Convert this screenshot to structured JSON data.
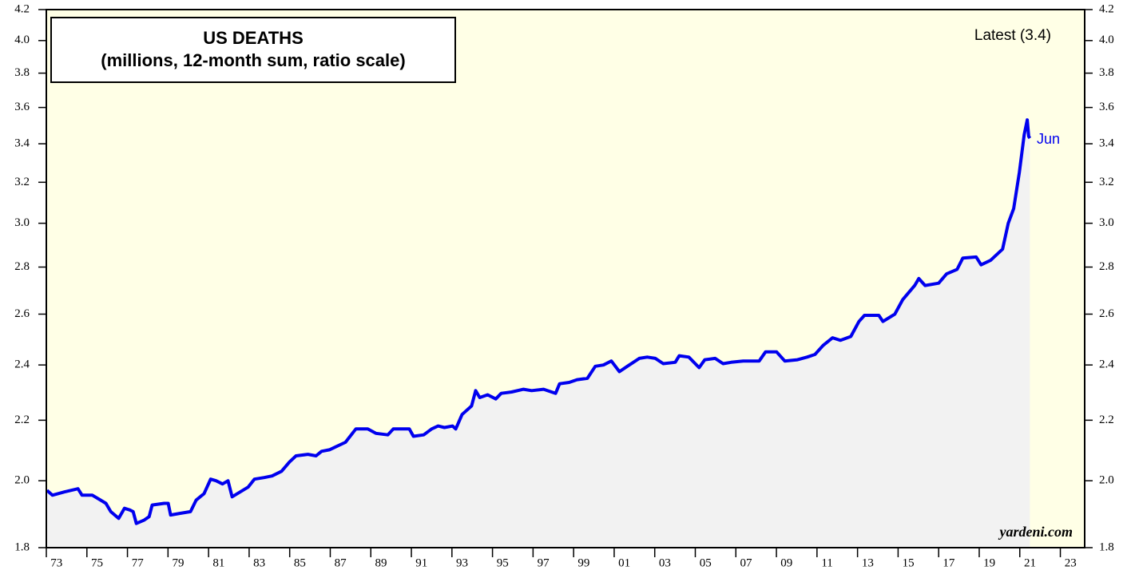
{
  "chart_data": {
    "type": "line",
    "title": "US DEATHS",
    "subtitle": "(millions, 12-month sum, ratio scale)",
    "annotations": [
      "Latest (3.4)",
      "Jun",
      "yardeni.com"
    ],
    "yscale": "log",
    "xlim": [
      1973,
      2024.2
    ],
    "xticks": [
      {
        "value": 1973,
        "label": "73"
      },
      {
        "value": 1975,
        "label": "75"
      },
      {
        "value": 1977,
        "label": "77"
      },
      {
        "value": 1979,
        "label": "79"
      },
      {
        "value": 1981,
        "label": "81"
      },
      {
        "value": 1983,
        "label": "83"
      },
      {
        "value": 1985,
        "label": "85"
      },
      {
        "value": 1987,
        "label": "87"
      },
      {
        "value": 1989,
        "label": "89"
      },
      {
        "value": 1991,
        "label": "91"
      },
      {
        "value": 1993,
        "label": "93"
      },
      {
        "value": 1995,
        "label": "95"
      },
      {
        "value": 1997,
        "label": "97"
      },
      {
        "value": 1999,
        "label": "99"
      },
      {
        "value": 2001,
        "label": "01"
      },
      {
        "value": 2003,
        "label": "03"
      },
      {
        "value": 2005,
        "label": "05"
      },
      {
        "value": 2007,
        "label": "07"
      },
      {
        "value": 2009,
        "label": "09"
      },
      {
        "value": 2011,
        "label": "11"
      },
      {
        "value": 2013,
        "label": "13"
      },
      {
        "value": 2015,
        "label": "15"
      },
      {
        "value": 2017,
        "label": "17"
      },
      {
        "value": 2019,
        "label": "19"
      },
      {
        "value": 2021,
        "label": "21"
      },
      {
        "value": 2023,
        "label": "23"
      }
    ],
    "ylim": [
      1.8,
      4.2
    ],
    "yticks": [
      1.8,
      {
        "value": 2,
        "label": "2.0"
      },
      2.2,
      2.4,
      2.6,
      2.8,
      {
        "value": 3,
        "label": "3.0"
      },
      3.2,
      3.4,
      3.6,
      3.8,
      {
        "value": 4,
        "label": "4.0"
      },
      4.2
    ],
    "x": [
      1973.03,
      1973.3,
      1973.89,
      1974.56,
      1974.76,
      1975.27,
      1975.67,
      1975.94,
      1976.18,
      1976.57,
      1976.85,
      1977.12,
      1977.28,
      1977.44,
      1977.83,
      1978.07,
      1978.22,
      1978.81,
      1979.01,
      1979.13,
      1979.6,
      1980.11,
      1980.39,
      1980.78,
      1981.1,
      1981.37,
      1981.69,
      1981.96,
      1982.16,
      1982.56,
      1982.95,
      1983.26,
      1983.74,
      1984.13,
      1984.6,
      1984.99,
      1985.31,
      1985.9,
      1986.3,
      1986.57,
      1986.96,
      1987.28,
      1987.75,
      1988.26,
      1988.85,
      1989.25,
      1989.84,
      1990.11,
      1990.9,
      1991.1,
      1991.61,
      1992.0,
      1992.32,
      1992.63,
      1993.03,
      1993.19,
      1993.5,
      1993.97,
      1994.17,
      1994.37,
      1994.76,
      1995.16,
      1995.43,
      1995.94,
      1996.53,
      1996.93,
      1997.52,
      1997.91,
      1998.11,
      1998.31,
      1998.78,
      1999.17,
      1999.68,
      2000.07,
      2000.47,
      2000.86,
      2001.26,
      2001.65,
      2002.24,
      2002.63,
      2003.03,
      2003.42,
      2004.01,
      2004.21,
      2004.68,
      2005.19,
      2005.47,
      2005.98,
      2006.37,
      2006.77,
      2007.36,
      2008.15,
      2008.46,
      2009.01,
      2009.41,
      2010.04,
      2010.51,
      2010.9,
      2011.3,
      2011.77,
      2012.16,
      2012.67,
      2013.07,
      2013.34,
      2014.05,
      2014.25,
      2014.84,
      2015.23,
      2015.82,
      2016.02,
      2016.33,
      2017.0,
      2017.39,
      2017.91,
      2018.19,
      2018.85,
      2019.09,
      2019.56,
      2020.15,
      2020.43,
      2020.7,
      2020.98,
      2021.22,
      2021.37,
      2021.44,
      2021.5
    ],
    "series": [
      {
        "name": "US Deaths",
        "color": "#0000ee",
        "values": [
          1.97,
          1.955,
          1.965,
          1.975,
          1.955,
          1.955,
          1.94,
          1.93,
          1.905,
          1.885,
          1.915,
          1.91,
          1.905,
          1.87,
          1.88,
          1.89,
          1.925,
          1.93,
          1.93,
          1.895,
          1.9,
          1.905,
          1.94,
          1.96,
          2.005,
          2.0,
          1.99,
          2.0,
          1.95,
          1.965,
          1.98,
          2.005,
          2.01,
          2.015,
          2.03,
          2.06,
          2.08,
          2.085,
          2.08,
          2.095,
          2.1,
          2.11,
          2.125,
          2.17,
          2.17,
          2.155,
          2.15,
          2.17,
          2.17,
          2.145,
          2.15,
          2.17,
          2.18,
          2.175,
          2.18,
          2.17,
          2.22,
          2.25,
          2.305,
          2.28,
          2.29,
          2.275,
          2.295,
          2.3,
          2.31,
          2.305,
          2.31,
          2.3,
          2.295,
          2.33,
          2.335,
          2.345,
          2.35,
          2.395,
          2.4,
          2.415,
          2.375,
          2.395,
          2.425,
          2.43,
          2.425,
          2.405,
          2.41,
          2.435,
          2.43,
          2.39,
          2.42,
          2.425,
          2.405,
          2.41,
          2.415,
          2.415,
          2.45,
          2.45,
          2.415,
          2.42,
          2.43,
          2.44,
          2.475,
          2.505,
          2.495,
          2.51,
          2.57,
          2.595,
          2.595,
          2.57,
          2.6,
          2.66,
          2.72,
          2.75,
          2.72,
          2.73,
          2.77,
          2.79,
          2.84,
          2.845,
          2.81,
          2.83,
          2.88,
          3.0,
          3.07,
          3.25,
          3.45,
          3.53,
          3.44,
          3.43
        ]
      }
    ],
    "area_color": "#f2f2f2",
    "background": "#ffffe6"
  }
}
